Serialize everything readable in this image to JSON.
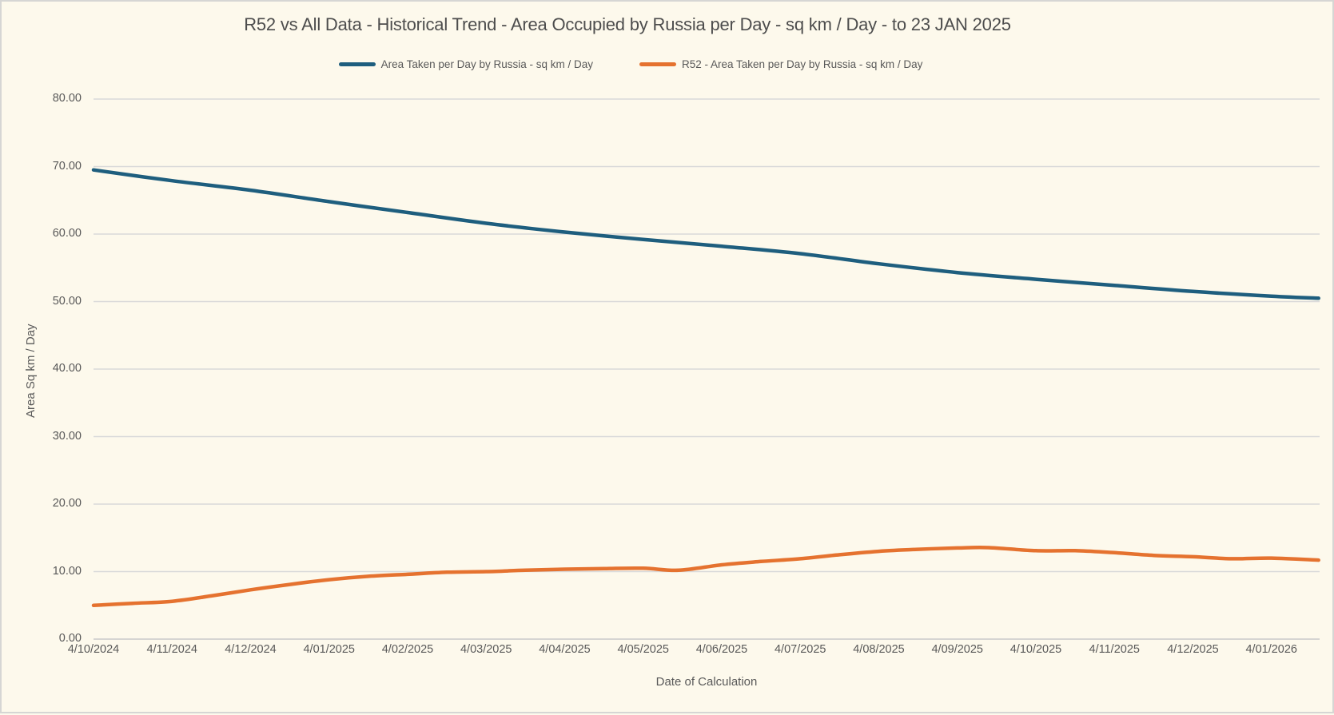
{
  "window": {
    "background_color": "#fdf9ec",
    "border_color": "#d6d6d4",
    "text_color": "#595959",
    "gridline_color": "#d9d9d9",
    "baseline_color": "#c9c9c9"
  },
  "chart_data": {
    "type": "line",
    "title": "R52 vs All Data - Historical Trend - Area Occupied by Russia per Day - sq km / Day - to 23 JAN 2025",
    "xlabel": "Date of Calculation",
    "ylabel": "Area Sq km / Day",
    "ylim": [
      0,
      80
    ],
    "grid": true,
    "legend_position": "top",
    "y_tick_labels": [
      "0.00",
      "10.00",
      "20.00",
      "30.00",
      "40.00",
      "50.00",
      "60.00",
      "70.00",
      "80.00"
    ],
    "x_tick_labels": [
      "4/10/2024",
      "4/11/2024",
      "4/12/2024",
      "4/01/2025",
      "4/02/2025",
      "4/03/2025",
      "4/04/2025",
      "4/05/2025",
      "4/06/2025",
      "4/07/2025",
      "4/08/2025",
      "4/09/2025",
      "4/10/2025",
      "4/11/2025",
      "4/12/2025",
      "4/01/2026"
    ],
    "x_note": "x values below are months after 4/10/2024; ticks fall on integers",
    "series": [
      {
        "name": "Area Taken per Day by Russia - sq km / Day",
        "color": "#1e5e7e",
        "points": [
          [
            0,
            69.5
          ],
          [
            1,
            67.9
          ],
          [
            2,
            66.5
          ],
          [
            3,
            64.8
          ],
          [
            4,
            63.2
          ],
          [
            5,
            61.6
          ],
          [
            6,
            60.3
          ],
          [
            7,
            59.2
          ],
          [
            8,
            58.2
          ],
          [
            9,
            57.1
          ],
          [
            10,
            55.6
          ],
          [
            11,
            54.3
          ],
          [
            12,
            53.3
          ],
          [
            13,
            52.4
          ],
          [
            14,
            51.5
          ],
          [
            15,
            50.8
          ],
          [
            15.6,
            50.5
          ]
        ]
      },
      {
        "name": "R52 - Area Taken per Day by Russia - sq km / Day",
        "color": "#e5722f",
        "points": [
          [
            0,
            5.0
          ],
          [
            0.5,
            5.3
          ],
          [
            1,
            5.6
          ],
          [
            1.5,
            6.4
          ],
          [
            2,
            7.3
          ],
          [
            2.5,
            8.1
          ],
          [
            3,
            8.8
          ],
          [
            3.5,
            9.3
          ],
          [
            4,
            9.6
          ],
          [
            4.5,
            9.9
          ],
          [
            5,
            10.0
          ],
          [
            5.5,
            10.2
          ],
          [
            6,
            10.35
          ],
          [
            6.5,
            10.45
          ],
          [
            7,
            10.5
          ],
          [
            7.45,
            10.2
          ],
          [
            8,
            11.0
          ],
          [
            8.5,
            11.5
          ],
          [
            9,
            11.9
          ],
          [
            9.5,
            12.5
          ],
          [
            10,
            13.0
          ],
          [
            10.5,
            13.3
          ],
          [
            11,
            13.5
          ],
          [
            11.4,
            13.55
          ],
          [
            12,
            13.1
          ],
          [
            12.5,
            13.1
          ],
          [
            13,
            12.8
          ],
          [
            13.5,
            12.4
          ],
          [
            14,
            12.2
          ],
          [
            14.5,
            11.9
          ],
          [
            15,
            12.0
          ],
          [
            15.6,
            11.7
          ]
        ]
      }
    ]
  }
}
